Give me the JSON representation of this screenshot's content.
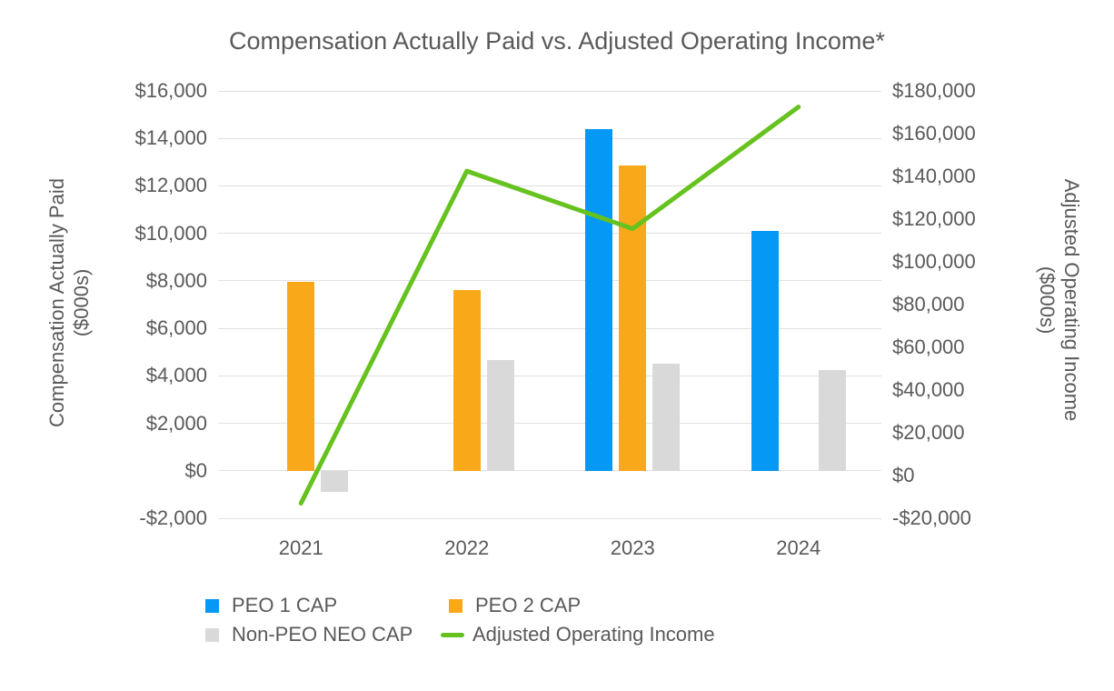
{
  "title": "Compensation Actually Paid vs. Adjusted Operating Income*",
  "chart_data": {
    "type": "combo-bar-line",
    "categories": [
      "2021",
      "2022",
      "2023",
      "2024"
    ],
    "bar_series": [
      {
        "name": "PEO 1 CAP",
        "color": "#0598f4",
        "values": [
          null,
          null,
          14400,
          10100
        ]
      },
      {
        "name": "PEO 2 CAP",
        "color": "#f9a81a",
        "values": [
          7950,
          7600,
          12850,
          null
        ]
      },
      {
        "name": "Non-PEO NEO CAP",
        "color": "#d9d9d9",
        "values": [
          -900,
          4650,
          4500,
          4250
        ]
      }
    ],
    "line_series": {
      "name": "Adjusted Operating Income",
      "color": "#66c21e",
      "axis": "right",
      "values": [
        -13000,
        142500,
        115500,
        172500
      ]
    },
    "left_axis": {
      "title_lines": [
        "Compensation Actually Paid",
        "($000s)"
      ],
      "min": -2000,
      "max": 16000,
      "step": 2000,
      "tick_labels": [
        "$16,000",
        "$14,000",
        "$12,000",
        "$10,000",
        "$8,000",
        "$6,000",
        "$4,000",
        "$2,000",
        "$0",
        "-$2,000"
      ]
    },
    "right_axis": {
      "title_lines": [
        "Adjusted Operating Income",
        "($000s)"
      ],
      "min": -20000,
      "max": 180000,
      "step": 20000,
      "tick_labels": [
        "$180,000",
        "$160,000",
        "$140,000",
        "$120,000",
        "$100,000",
        "$80,000",
        "$60,000",
        "$40,000",
        "$20,000",
        "$0",
        "-$20,000"
      ]
    },
    "grid": "horizontal-only",
    "legend_position": "bottom",
    "legend": [
      {
        "label": "PEO 1 CAP",
        "swatch": "square",
        "color": "#0598f4"
      },
      {
        "label": "PEO 2 CAP",
        "swatch": "square",
        "color": "#f9a81a"
      },
      {
        "label": "Non-PEO NEO CAP",
        "swatch": "square",
        "color": "#d9d9d9"
      },
      {
        "label": "Adjusted Operating Income",
        "swatch": "line",
        "color": "#66c21e"
      }
    ]
  }
}
